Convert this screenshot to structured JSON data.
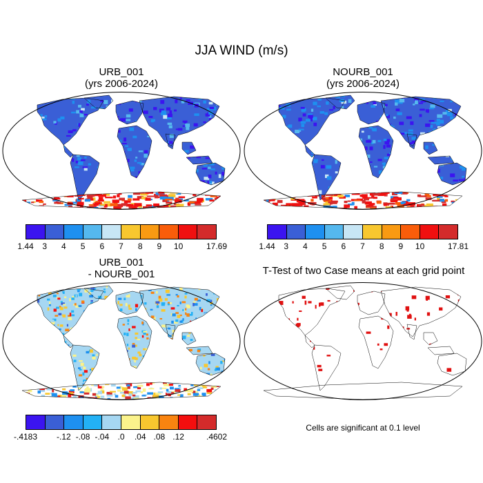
{
  "title": "JJA WIND (m/s)",
  "panels": [
    {
      "title_line1": "URB_001",
      "title_line2": "(yrs 2006-2024)"
    },
    {
      "title_line1": "NOURB_001",
      "title_line2": "(yrs 2006-2024)"
    },
    {
      "title_line1": "URB_001",
      "title_line2": "- NOURB_001"
    },
    {
      "title_line1": "T-Test of two Case means at each grid point"
    }
  ],
  "note": "Cells are significant at 0.1 level",
  "chart_data": [
    {
      "type": "heatmap",
      "title": "URB_001 (yrs 2006-2024)",
      "colorbar_labels": [
        "1.44",
        "3",
        "4",
        "5",
        "6",
        "7",
        "8",
        "9",
        "10",
        "17.69"
      ],
      "colors": [
        "#3b14f0",
        "#3a5fd6",
        "#1e90f0",
        "#55b8ee",
        "#c7e6f5",
        "#f8c72f",
        "#f99a12",
        "#f95d0a",
        "#f01010",
        "#d42b2b"
      ],
      "range": [
        1.44,
        17.69
      ]
    },
    {
      "type": "heatmap",
      "title": "NOURB_001 (yrs 2006-2024)",
      "colorbar_labels": [
        "1.44",
        "3",
        "4",
        "5",
        "6",
        "7",
        "8",
        "9",
        "10",
        "17.81"
      ],
      "colors": [
        "#3b14f0",
        "#3a5fd6",
        "#1e90f0",
        "#55b8ee",
        "#c7e6f5",
        "#f8c72f",
        "#f99a12",
        "#f95d0a",
        "#f01010",
        "#d42b2b"
      ],
      "range": [
        1.44,
        17.81
      ]
    },
    {
      "type": "heatmap",
      "title": "URB_001 - NOURB_001",
      "colorbar_labels": [
        "-.4183",
        "-.12",
        "-.08",
        "-.04",
        ".0",
        ".04",
        ".08",
        ".12",
        ".4602"
      ],
      "colors": [
        "#3b14f0",
        "#3a5fd6",
        "#1e90f0",
        "#23b1f5",
        "#a6d7f2",
        "#fbf38c",
        "#f8c72f",
        "#f98410",
        "#f40e0e",
        "#d42b2b"
      ],
      "range": [
        -0.4183,
        0.4602
      ]
    },
    {
      "type": "heatmap",
      "title": "T-Test of two Case means at each grid point",
      "significance_level": 0.1,
      "mark_color": "#e01010"
    }
  ]
}
